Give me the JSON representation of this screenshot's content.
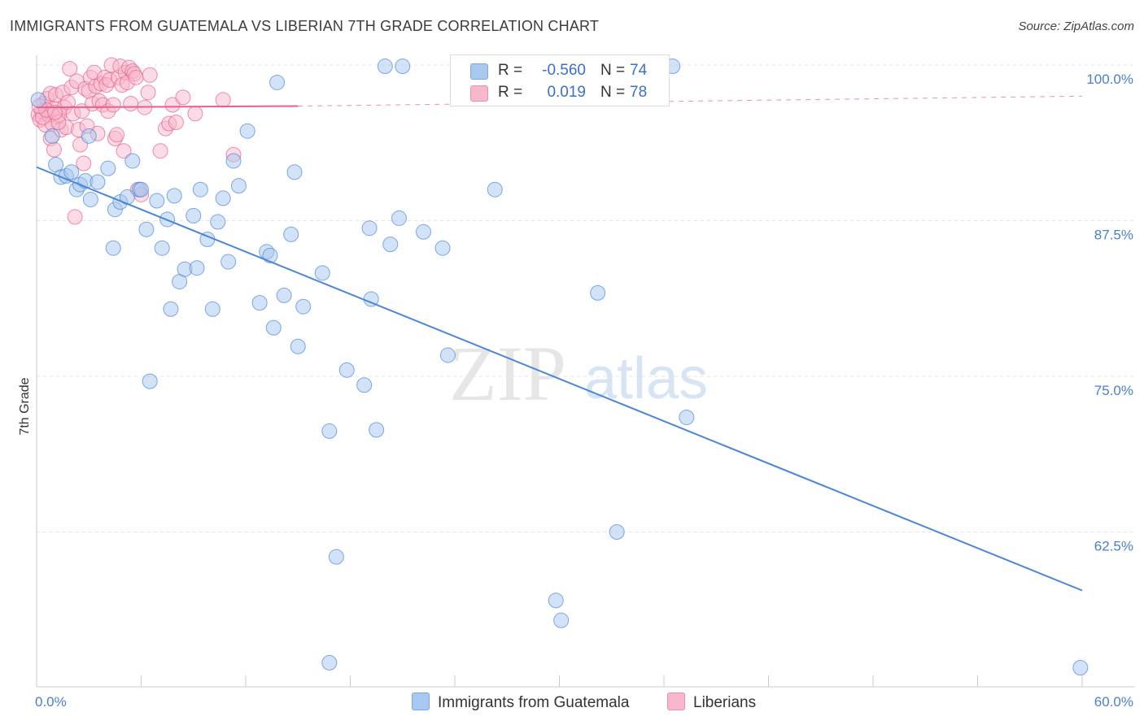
{
  "title": "IMMIGRANTS FROM GUATEMALA VS LIBERIAN 7TH GRADE CORRELATION CHART",
  "source": "Source: ZipAtlas.com",
  "watermark": {
    "zip": "ZIP",
    "atlas": "atlas"
  },
  "legend": {
    "r_label": "R =",
    "n_label": "N =",
    "rows": [
      {
        "r": "-0.560",
        "n": "74",
        "color": "#a8c8f0"
      },
      {
        "r": "0.019",
        "n": "78",
        "color": "#f8b8cc"
      }
    ]
  },
  "bottom_legend": {
    "series1": "Immigrants from Guatemala",
    "series2": "Liberians"
  },
  "chart_data": {
    "type": "scatter",
    "xlabel": "",
    "ylabel": "7th Grade",
    "x_tick_labels": [
      "0.0%",
      "60.0%"
    ],
    "y_tick_labels": [
      "100.0%",
      "87.5%",
      "75.0%",
      "62.5%"
    ],
    "y_ticks": [
      100.0,
      87.5,
      75.0,
      62.5
    ],
    "xlim": [
      0,
      60
    ],
    "ylim": [
      51.5,
      101.5
    ],
    "grid": true,
    "series": [
      {
        "name": "Immigrants from Guatemala",
        "color": "#4a86d8",
        "fill": "#a8c8f0",
        "trend": {
          "x": [
            0,
            60
          ],
          "y": [
            91.8,
            57.8
          ],
          "style": "solid"
        },
        "points": [
          [
            0.1,
            97.2
          ],
          [
            0.9,
            94.3
          ],
          [
            1.1,
            92.0
          ],
          [
            1.4,
            91.0
          ],
          [
            1.7,
            91.1
          ],
          [
            2.0,
            91.4
          ],
          [
            2.3,
            90.0
          ],
          [
            2.5,
            90.4
          ],
          [
            2.8,
            90.7
          ],
          [
            3.1,
            89.2
          ],
          [
            3.5,
            90.6
          ],
          [
            4.1,
            91.7
          ],
          [
            4.4,
            85.3
          ],
          [
            4.5,
            88.4
          ],
          [
            4.8,
            89.0
          ],
          [
            5.2,
            89.4
          ],
          [
            5.5,
            92.3
          ],
          [
            5.9,
            90.0
          ],
          [
            6.0,
            90.0
          ],
          [
            6.3,
            86.8
          ],
          [
            6.5,
            74.6
          ],
          [
            6.9,
            89.1
          ],
          [
            7.2,
            85.3
          ],
          [
            7.5,
            87.6
          ],
          [
            7.7,
            80.4
          ],
          [
            7.9,
            89.5
          ],
          [
            8.2,
            82.6
          ],
          [
            8.5,
            83.6
          ],
          [
            9.0,
            87.9
          ],
          [
            9.2,
            83.7
          ],
          [
            9.4,
            90.0
          ],
          [
            9.8,
            86.0
          ],
          [
            10.1,
            80.4
          ],
          [
            10.4,
            87.4
          ],
          [
            10.7,
            89.3
          ],
          [
            11.0,
            84.2
          ],
          [
            11.3,
            92.3
          ],
          [
            11.6,
            90.3
          ],
          [
            12.1,
            94.7
          ],
          [
            12.8,
            80.9
          ],
          [
            13.2,
            85.0
          ],
          [
            13.4,
            84.7
          ],
          [
            13.6,
            78.9
          ],
          [
            13.8,
            98.6
          ],
          [
            14.2,
            81.5
          ],
          [
            14.6,
            86.4
          ],
          [
            14.8,
            91.4
          ],
          [
            15.0,
            77.4
          ],
          [
            15.3,
            80.6
          ],
          [
            16.4,
            83.3
          ],
          [
            16.8,
            70.6
          ],
          [
            17.2,
            60.5
          ],
          [
            17.8,
            75.5
          ],
          [
            18.8,
            74.3
          ],
          [
            19.1,
            86.9
          ],
          [
            19.2,
            81.2
          ],
          [
            19.5,
            70.7
          ],
          [
            20.0,
            99.9
          ],
          [
            20.3,
            85.6
          ],
          [
            20.8,
            87.7
          ],
          [
            21.0,
            99.9
          ],
          [
            22.2,
            86.6
          ],
          [
            23.3,
            85.3
          ],
          [
            23.6,
            76.7
          ],
          [
            26.3,
            90.0
          ],
          [
            29.8,
            57.0
          ],
          [
            30.1,
            55.4
          ],
          [
            32.2,
            81.7
          ],
          [
            33.3,
            62.5
          ],
          [
            36.5,
            99.9
          ],
          [
            37.3,
            71.7
          ],
          [
            59.9,
            51.6
          ],
          [
            16.8,
            52.0
          ],
          [
            3.0,
            94.3
          ]
        ]
      },
      {
        "name": "Liberians",
        "color": "#e8608a",
        "fill": "#f8b8cc",
        "trend": {
          "x": [
            0,
            15
          ],
          "y": [
            96.6,
            96.7
          ],
          "style": "solid",
          "extended": {
            "x": [
              15,
              60
            ],
            "y": [
              96.7,
              97.5
            ],
            "style": "dashed"
          }
        },
        "points": [
          [
            0.1,
            96.0
          ],
          [
            0.2,
            95.6
          ],
          [
            0.3,
            96.3
          ],
          [
            0.4,
            96.9
          ],
          [
            0.5,
            95.2
          ],
          [
            0.6,
            97.3
          ],
          [
            0.7,
            96.0
          ],
          [
            0.8,
            94.1
          ],
          [
            0.8,
            97.7
          ],
          [
            0.9,
            95.3
          ],
          [
            1.0,
            96.5
          ],
          [
            1.0,
            93.2
          ],
          [
            1.1,
            97.6
          ],
          [
            1.2,
            95.9
          ],
          [
            1.3,
            96.0
          ],
          [
            1.4,
            94.8
          ],
          [
            1.5,
            97.8
          ],
          [
            1.6,
            96.6
          ],
          [
            1.7,
            95.0
          ],
          [
            1.8,
            97.0
          ],
          [
            1.9,
            99.7
          ],
          [
            2.0,
            98.2
          ],
          [
            2.1,
            96.1
          ],
          [
            2.2,
            87.8
          ],
          [
            2.3,
            98.7
          ],
          [
            2.4,
            94.8
          ],
          [
            2.5,
            93.6
          ],
          [
            2.6,
            96.3
          ],
          [
            2.7,
            92.1
          ],
          [
            2.8,
            98.1
          ],
          [
            2.9,
            95.1
          ],
          [
            3.0,
            97.9
          ],
          [
            3.1,
            99.0
          ],
          [
            3.2,
            96.9
          ],
          [
            3.3,
            99.4
          ],
          [
            3.4,
            98.3
          ],
          [
            3.5,
            94.5
          ],
          [
            3.6,
            97.1
          ],
          [
            3.7,
            98.5
          ],
          [
            3.8,
            96.8
          ],
          [
            3.9,
            99.0
          ],
          [
            4.0,
            98.4
          ],
          [
            4.1,
            96.3
          ],
          [
            4.2,
            98.8
          ],
          [
            4.3,
            100.0
          ],
          [
            4.4,
            96.8
          ],
          [
            4.5,
            94.1
          ],
          [
            4.6,
            94.4
          ],
          [
            4.7,
            99.0
          ],
          [
            4.8,
            99.9
          ],
          [
            4.9,
            98.4
          ],
          [
            5.0,
            93.1
          ],
          [
            5.1,
            99.4
          ],
          [
            5.2,
            98.6
          ],
          [
            5.3,
            99.8
          ],
          [
            5.4,
            96.9
          ],
          [
            5.5,
            99.5
          ],
          [
            5.6,
            99.3
          ],
          [
            5.7,
            99.0
          ],
          [
            5.8,
            90.0
          ],
          [
            6.0,
            89.6
          ],
          [
            6.2,
            96.6
          ],
          [
            6.4,
            97.8
          ],
          [
            6.5,
            99.2
          ],
          [
            7.1,
            93.1
          ],
          [
            7.4,
            94.9
          ],
          [
            7.6,
            95.3
          ],
          [
            7.8,
            96.8
          ],
          [
            8.0,
            95.4
          ],
          [
            8.4,
            97.4
          ],
          [
            9.1,
            96.1
          ],
          [
            10.7,
            97.2
          ],
          [
            11.3,
            92.8
          ],
          [
            0.35,
            95.8
          ],
          [
            0.55,
            96.4
          ],
          [
            1.25,
            95.4
          ],
          [
            0.15,
            96.7
          ],
          [
            1.05,
            96.2
          ]
        ]
      }
    ]
  }
}
